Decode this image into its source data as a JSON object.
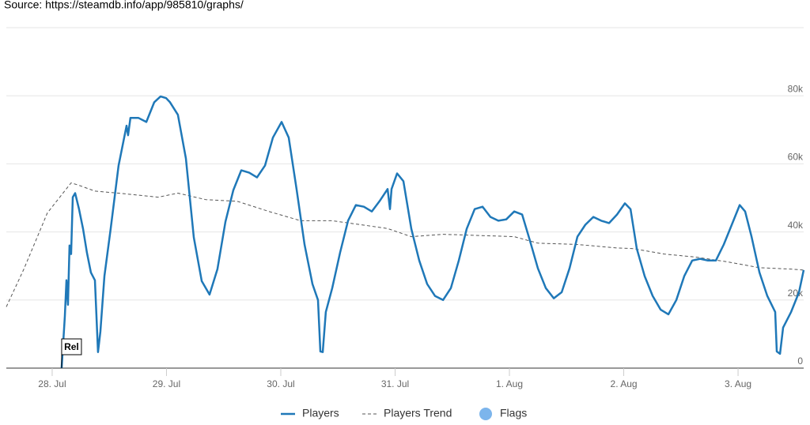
{
  "chart_data": {
    "type": "line",
    "source": "Source: https://steamdb.info/app/985810/graphs/",
    "xlim": [
      -0.401,
      6.574
    ],
    "xticks": [
      {
        "value": 0,
        "label": "28. Jul"
      },
      {
        "value": 1,
        "label": "29. Jul"
      },
      {
        "value": 2,
        "label": "30. Jul"
      },
      {
        "value": 3,
        "label": "31. Jul"
      },
      {
        "value": 4,
        "label": "1. Aug"
      },
      {
        "value": 5,
        "label": "2. Aug"
      },
      {
        "value": 6,
        "label": "3. Aug"
      }
    ],
    "ylim": [
      0,
      100000
    ],
    "yticks": [
      0,
      {
        "value": 20000,
        "label": "20k"
      },
      {
        "value": 40000,
        "label": "40k"
      },
      {
        "value": 60000,
        "label": "60k"
      },
      {
        "value": 80000,
        "label": "80k"
      }
    ],
    "grid": true,
    "series": [
      {
        "name": "Players",
        "color": "#1f78b8",
        "dashed": false,
        "x": [
          0.083,
          0.111,
          0.125,
          0.138,
          0.152,
          0.166,
          0.18,
          0.201,
          0.235,
          0.27,
          0.304,
          0.339,
          0.374,
          0.401,
          0.422,
          0.457,
          0.512,
          0.581,
          0.651,
          0.664,
          0.685,
          0.754,
          0.824,
          0.893,
          0.948,
          0.997,
          1.031,
          1.1,
          1.17,
          1.239,
          1.308,
          1.377,
          1.446,
          1.516,
          1.585,
          1.654,
          1.723,
          1.792,
          1.862,
          1.931,
          2.007,
          2.069,
          2.138,
          2.208,
          2.277,
          2.325,
          2.346,
          2.367,
          2.394,
          2.45,
          2.519,
          2.588,
          2.657,
          2.727,
          2.796,
          2.865,
          2.934,
          2.955,
          2.969,
          3.017,
          3.073,
          3.142,
          3.211,
          3.28,
          3.349,
          3.419,
          3.488,
          3.557,
          3.626,
          3.696,
          3.765,
          3.834,
          3.903,
          3.972,
          4.042,
          4.111,
          4.18,
          4.249,
          4.318,
          4.388,
          4.457,
          4.526,
          4.595,
          4.664,
          4.734,
          4.803,
          4.872,
          4.941,
          5.01,
          5.059,
          5.114,
          5.183,
          5.253,
          5.322,
          5.391,
          5.46,
          5.529,
          5.599,
          5.668,
          5.737,
          5.806,
          5.875,
          5.945,
          6.014,
          6.062,
          6.118,
          6.187,
          6.256,
          6.325,
          6.339,
          6.367,
          6.394,
          6.464,
          6.533,
          6.574
        ],
        "values": [
          0,
          15300,
          25800,
          18600,
          36000,
          33500,
          50200,
          51400,
          46700,
          40900,
          33900,
          28100,
          25800,
          4700,
          10700,
          27000,
          40900,
          59500,
          71200,
          68400,
          73500,
          73500,
          72300,
          78100,
          79800,
          79300,
          78100,
          74400,
          61600,
          38400,
          25600,
          21600,
          29100,
          43000,
          52300,
          58100,
          57400,
          56000,
          59500,
          67700,
          72300,
          67700,
          52600,
          36300,
          24700,
          20000,
          4900,
          4700,
          16500,
          23500,
          34000,
          43300,
          47900,
          47400,
          46000,
          49100,
          52600,
          46700,
          52600,
          57200,
          54900,
          40900,
          31600,
          24700,
          21200,
          20000,
          23500,
          31600,
          40900,
          46700,
          47400,
          44400,
          43300,
          43700,
          46000,
          45100,
          37400,
          29300,
          23500,
          20500,
          22300,
          29300,
          38600,
          42100,
          44400,
          43300,
          42600,
          45100,
          48400,
          46700,
          35100,
          27000,
          21200,
          17200,
          15800,
          20000,
          27000,
          31600,
          32100,
          31600,
          31600,
          36300,
          42100,
          47900,
          46000,
          38600,
          28100,
          21200,
          16500,
          4900,
          4200,
          11900,
          16500,
          22300,
          28800
        ]
      },
      {
        "name": "Players Trend",
        "color": "#555555",
        "dashed": true,
        "x": [
          -0.401,
          -0.249,
          -0.042,
          0.166,
          0.235,
          0.374,
          0.581,
          0.927,
          1.1,
          1.343,
          1.619,
          1.896,
          2.173,
          2.45,
          2.727,
          2.934,
          3.142,
          3.419,
          3.696,
          4.042,
          4.249,
          4.595,
          4.941,
          5.08,
          5.356,
          5.633,
          5.91,
          6.187,
          6.464,
          6.574
        ],
        "values": [
          18000,
          29000,
          45600,
          54400,
          53700,
          52000,
          51400,
          50200,
          51400,
          49500,
          49000,
          46000,
          43300,
          43300,
          42000,
          41000,
          38600,
          39300,
          39000,
          38600,
          36700,
          36300,
          35300,
          35100,
          33500,
          32600,
          31200,
          29500,
          29100,
          28800
        ]
      }
    ],
    "flags": {
      "name": "Flags",
      "color": "#7cb5ec",
      "items": [
        {
          "x": 0.083,
          "title": "Rel"
        }
      ]
    }
  }
}
